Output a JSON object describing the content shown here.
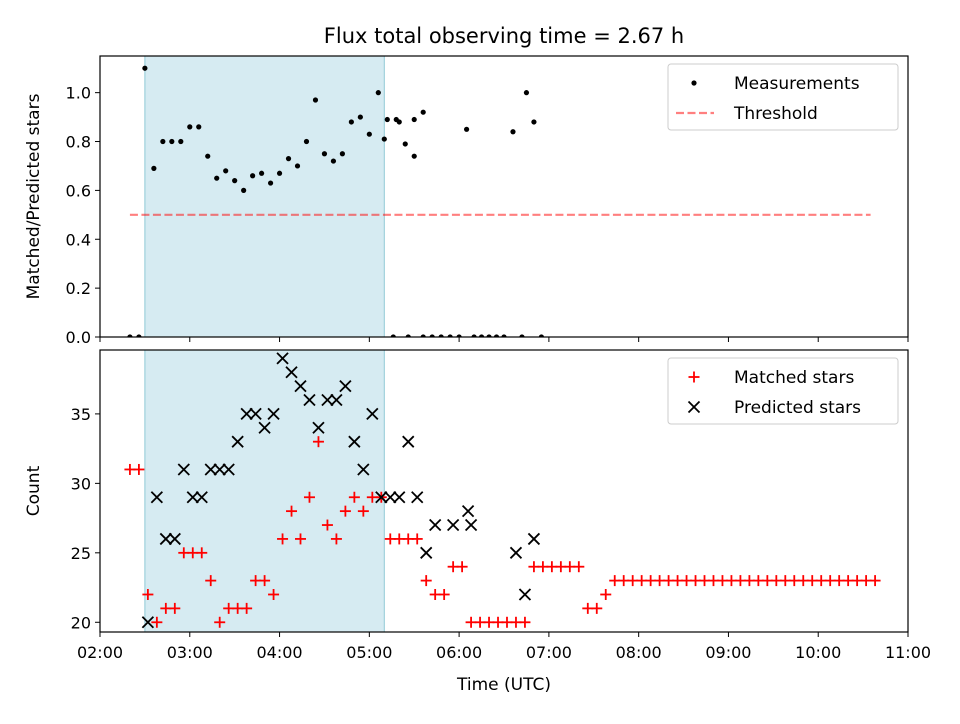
{
  "title": "Flux total observing time = 2.67 h",
  "chart_data": [
    {
      "type": "scatter",
      "ylabel": "Matched/Predicted stars",
      "xlabel": "",
      "xlim": [
        "02:00",
        "11:00"
      ],
      "ylim": [
        0,
        1.15
      ],
      "yticks": [
        "0.0",
        "0.2",
        "0.4",
        "0.6",
        "0.8",
        "1.0"
      ],
      "shaded_interval": [
        "02:30",
        "05:10"
      ],
      "legend": {
        "placement": "top-right",
        "entries": [
          "Measurements",
          "Threshold"
        ]
      },
      "threshold": {
        "name": "Threshold",
        "y": 0.5,
        "x": [
          "02:20",
          "10:35"
        ]
      },
      "series": [
        {
          "name": "Measurements",
          "points": [
            [
              "02:20",
              0
            ],
            [
              "02:26",
              0
            ],
            [
              "02:30",
              1.1
            ],
            [
              "02:36",
              0.69
            ],
            [
              "02:42",
              0.8
            ],
            [
              "02:48",
              0.8
            ],
            [
              "02:54",
              0.8
            ],
            [
              "03:00",
              0.86
            ],
            [
              "03:06",
              0.86
            ],
            [
              "03:12",
              0.74
            ],
            [
              "03:18",
              0.65
            ],
            [
              "03:24",
              0.68
            ],
            [
              "03:30",
              0.64
            ],
            [
              "03:36",
              0.6
            ],
            [
              "03:42",
              0.66
            ],
            [
              "03:48",
              0.67
            ],
            [
              "03:54",
              0.63
            ],
            [
              "04:00",
              0.67
            ],
            [
              "04:06",
              0.73
            ],
            [
              "04:12",
              0.7
            ],
            [
              "04:18",
              0.8
            ],
            [
              "04:24",
              0.97
            ],
            [
              "04:30",
              0.75
            ],
            [
              "04:36",
              0.72
            ],
            [
              "04:42",
              0.75
            ],
            [
              "04:48",
              0.88
            ],
            [
              "04:54",
              0.9
            ],
            [
              "05:00",
              0.83
            ],
            [
              "05:06",
              1.0
            ],
            [
              "05:12",
              0.89
            ],
            [
              "05:18",
              0.89
            ],
            [
              "05:24",
              0.79
            ],
            [
              "05:30",
              0.89
            ],
            [
              "05:36",
              0.92
            ],
            [
              "05:10",
              0.81
            ],
            [
              "05:16",
              0
            ],
            [
              "05:20",
              0.88
            ],
            [
              "05:26",
              0
            ],
            [
              "05:30",
              0.74
            ],
            [
              "05:36",
              0
            ],
            [
              "05:42",
              0
            ],
            [
              "05:48",
              0
            ],
            [
              "05:54",
              0
            ],
            [
              "06:00",
              0
            ],
            [
              "06:05",
              0.85
            ],
            [
              "06:10",
              0
            ],
            [
              "06:15",
              0
            ],
            [
              "06:20",
              0
            ],
            [
              "06:25",
              0
            ],
            [
              "06:30",
              0
            ],
            [
              "06:36",
              0.84
            ],
            [
              "06:42",
              0
            ],
            [
              "06:45",
              1.0
            ],
            [
              "06:50",
              0.88
            ],
            [
              "06:55",
              0
            ]
          ]
        }
      ]
    },
    {
      "type": "scatter",
      "ylabel": "Count",
      "xlabel": "Time (UTC)",
      "xlim": [
        "02:00",
        "11:00"
      ],
      "ylim": [
        19.3,
        39.6
      ],
      "yticks": [
        "20",
        "25",
        "30",
        "35"
      ],
      "xticks": [
        "02:00",
        "03:00",
        "04:00",
        "05:00",
        "06:00",
        "07:00",
        "08:00",
        "09:00",
        "10:00",
        "11:00"
      ],
      "shaded_interval": [
        "02:30",
        "05:10"
      ],
      "legend": {
        "placement": "top-right",
        "entries": [
          "Matched stars",
          "Predicted stars"
        ]
      },
      "series": [
        {
          "name": "Matched stars",
          "marker": "plus",
          "color": "#ff0000",
          "points": [
            [
              "02:20",
              31
            ],
            [
              "02:26",
              31
            ],
            [
              "02:32",
              22
            ],
            [
              "02:38",
              20
            ],
            [
              "02:44",
              21
            ],
            [
              "02:50",
              21
            ],
            [
              "02:56",
              25
            ],
            [
              "03:02",
              25
            ],
            [
              "03:08",
              25
            ],
            [
              "03:14",
              23
            ],
            [
              "03:20",
              20
            ],
            [
              "03:26",
              21
            ],
            [
              "03:32",
              21
            ],
            [
              "03:38",
              21
            ],
            [
              "03:44",
              23
            ],
            [
              "03:50",
              23
            ],
            [
              "03:56",
              22
            ],
            [
              "04:02",
              26
            ],
            [
              "04:08",
              28
            ],
            [
              "04:14",
              26
            ],
            [
              "04:20",
              29
            ],
            [
              "04:26",
              33
            ],
            [
              "04:32",
              27
            ],
            [
              "04:38",
              26
            ],
            [
              "04:44",
              28
            ],
            [
              "04:50",
              29
            ],
            [
              "04:56",
              28
            ],
            [
              "05:02",
              29
            ],
            [
              "05:08",
              29
            ],
            [
              "05:14",
              26
            ],
            [
              "05:20",
              26
            ],
            [
              "05:26",
              26
            ],
            [
              "05:32",
              26
            ],
            [
              "05:38",
              23
            ],
            [
              "05:44",
              22
            ],
            [
              "05:50",
              22
            ],
            [
              "05:56",
              24
            ],
            [
              "06:02",
              24
            ],
            [
              "06:08",
              20
            ],
            [
              "06:14",
              20
            ],
            [
              "06:20",
              20
            ],
            [
              "06:26",
              20
            ],
            [
              "06:32",
              20
            ],
            [
              "06:38",
              20
            ],
            [
              "06:44",
              20
            ],
            [
              "06:50",
              24
            ],
            [
              "06:56",
              24
            ],
            [
              "07:02",
              24
            ],
            [
              "07:08",
              24
            ],
            [
              "07:14",
              24
            ],
            [
              "07:20",
              24
            ],
            [
              "07:26",
              21
            ],
            [
              "07:32",
              21
            ],
            [
              "07:38",
              22
            ],
            [
              "07:44",
              23
            ],
            [
              "07:50",
              23
            ],
            [
              "07:56",
              23
            ],
            [
              "08:02",
              23
            ],
            [
              "08:08",
              23
            ],
            [
              "08:14",
              23
            ],
            [
              "08:20",
              23
            ],
            [
              "08:26",
              23
            ],
            [
              "08:32",
              23
            ],
            [
              "08:38",
              23
            ],
            [
              "08:44",
              23
            ],
            [
              "08:50",
              23
            ],
            [
              "08:56",
              23
            ],
            [
              "09:02",
              23
            ],
            [
              "09:08",
              23
            ],
            [
              "09:14",
              23
            ],
            [
              "09:20",
              23
            ],
            [
              "09:26",
              23
            ],
            [
              "09:32",
              23
            ],
            [
              "09:38",
              23
            ],
            [
              "09:44",
              23
            ],
            [
              "09:50",
              23
            ],
            [
              "09:56",
              23
            ],
            [
              "10:02",
              23
            ],
            [
              "10:08",
              23
            ],
            [
              "10:14",
              23
            ],
            [
              "10:20",
              23
            ],
            [
              "10:26",
              23
            ],
            [
              "10:32",
              23
            ],
            [
              "10:38",
              23
            ]
          ]
        },
        {
          "name": "Predicted stars",
          "marker": "x",
          "color": "#000000",
          "points": [
            [
              "02:32",
              20
            ],
            [
              "02:38",
              29
            ],
            [
              "02:44",
              26
            ],
            [
              "02:50",
              26
            ],
            [
              "02:56",
              31
            ],
            [
              "03:02",
              29
            ],
            [
              "03:08",
              29
            ],
            [
              "03:14",
              31
            ],
            [
              "03:20",
              31
            ],
            [
              "03:26",
              31
            ],
            [
              "03:32",
              33
            ],
            [
              "03:38",
              35
            ],
            [
              "03:44",
              35
            ],
            [
              "03:50",
              34
            ],
            [
              "03:56",
              35
            ],
            [
              "04:02",
              39
            ],
            [
              "04:08",
              38
            ],
            [
              "04:14",
              37
            ],
            [
              "04:20",
              36
            ],
            [
              "04:26",
              34
            ],
            [
              "04:32",
              36
            ],
            [
              "04:38",
              36
            ],
            [
              "04:44",
              37
            ],
            [
              "04:50",
              33
            ],
            [
              "04:56",
              31
            ],
            [
              "05:02",
              35
            ],
            [
              "05:08",
              29
            ],
            [
              "05:14",
              29
            ],
            [
              "05:20",
              29
            ],
            [
              "05:26",
              33
            ],
            [
              "05:32",
              29
            ],
            [
              "05:38",
              25
            ],
            [
              "05:44",
              27
            ],
            [
              "05:56",
              27
            ],
            [
              "06:08",
              27
            ],
            [
              "06:06",
              28
            ],
            [
              "06:38",
              25
            ],
            [
              "06:44",
              22
            ],
            [
              "06:50",
              26
            ]
          ]
        }
      ]
    }
  ]
}
